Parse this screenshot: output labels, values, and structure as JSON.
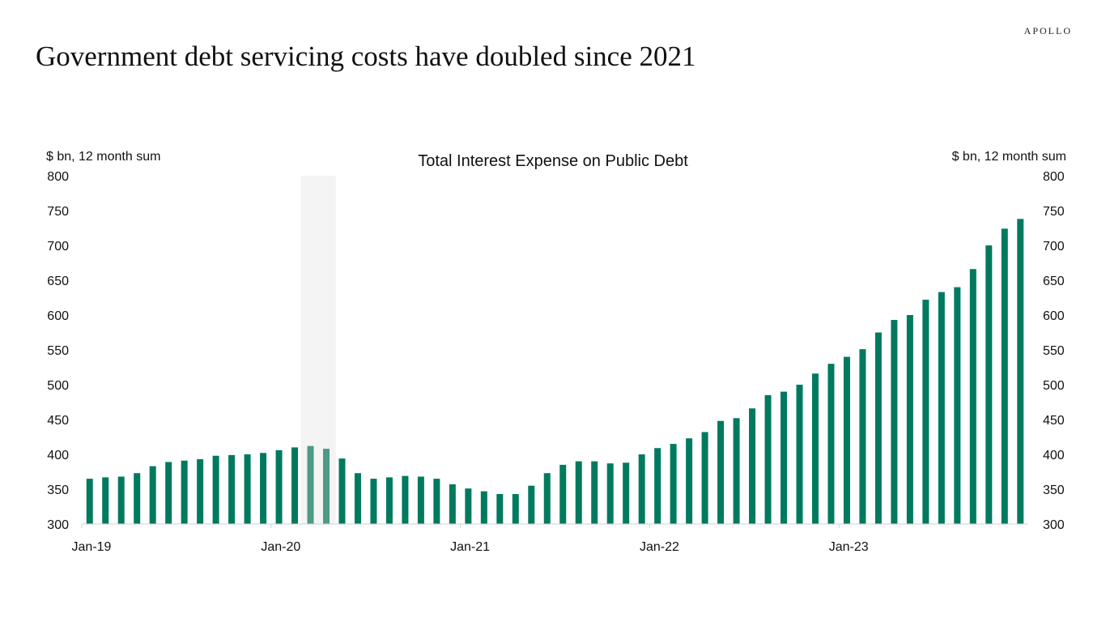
{
  "brand": {
    "logo_text": "APOLLO"
  },
  "headline": "Government debt servicing costs have doubled since 2021",
  "chart_data": {
    "type": "bar",
    "title": "Total Interest Expense on Public Debt",
    "ylabel_left": "$ bn, 12 month sum",
    "ylabel_right": "$ bn, 12 month sum",
    "xlabel": "",
    "ylim": [
      300,
      800
    ],
    "yticks": [
      300,
      350,
      400,
      450,
      500,
      550,
      600,
      650,
      700,
      750,
      800
    ],
    "x_tick_labels": [
      {
        "label": "Jan-19",
        "index": 0
      },
      {
        "label": "Jan-20",
        "index": 12
      },
      {
        "label": "Jan-21",
        "index": 24
      },
      {
        "label": "Jan-22",
        "index": 36
      },
      {
        "label": "Jan-23",
        "index": 48
      }
    ],
    "recession_shading": {
      "start_index": 14,
      "end_index": 15,
      "note": "shaded period"
    },
    "bar_color": "#007A5E",
    "shaded_bar_color": "#4D9A85",
    "shade_color": "#F4F4F4",
    "series": [
      {
        "name": "Total Interest Expense",
        "start": "Jan-19",
        "frequency": "monthly",
        "values": [
          365,
          367,
          368,
          373,
          383,
          389,
          391,
          393,
          398,
          399,
          400,
          402,
          406,
          410,
          412,
          408,
          394,
          373,
          365,
          367,
          369,
          368,
          365,
          357,
          351,
          347,
          343,
          343,
          355,
          373,
          385,
          390,
          390,
          387,
          388,
          400,
          409,
          415,
          423,
          432,
          448,
          452,
          466,
          485,
          490,
          500,
          516,
          530,
          540,
          551,
          575,
          593,
          600,
          622,
          633,
          640,
          666,
          700,
          724,
          738
        ]
      }
    ]
  }
}
